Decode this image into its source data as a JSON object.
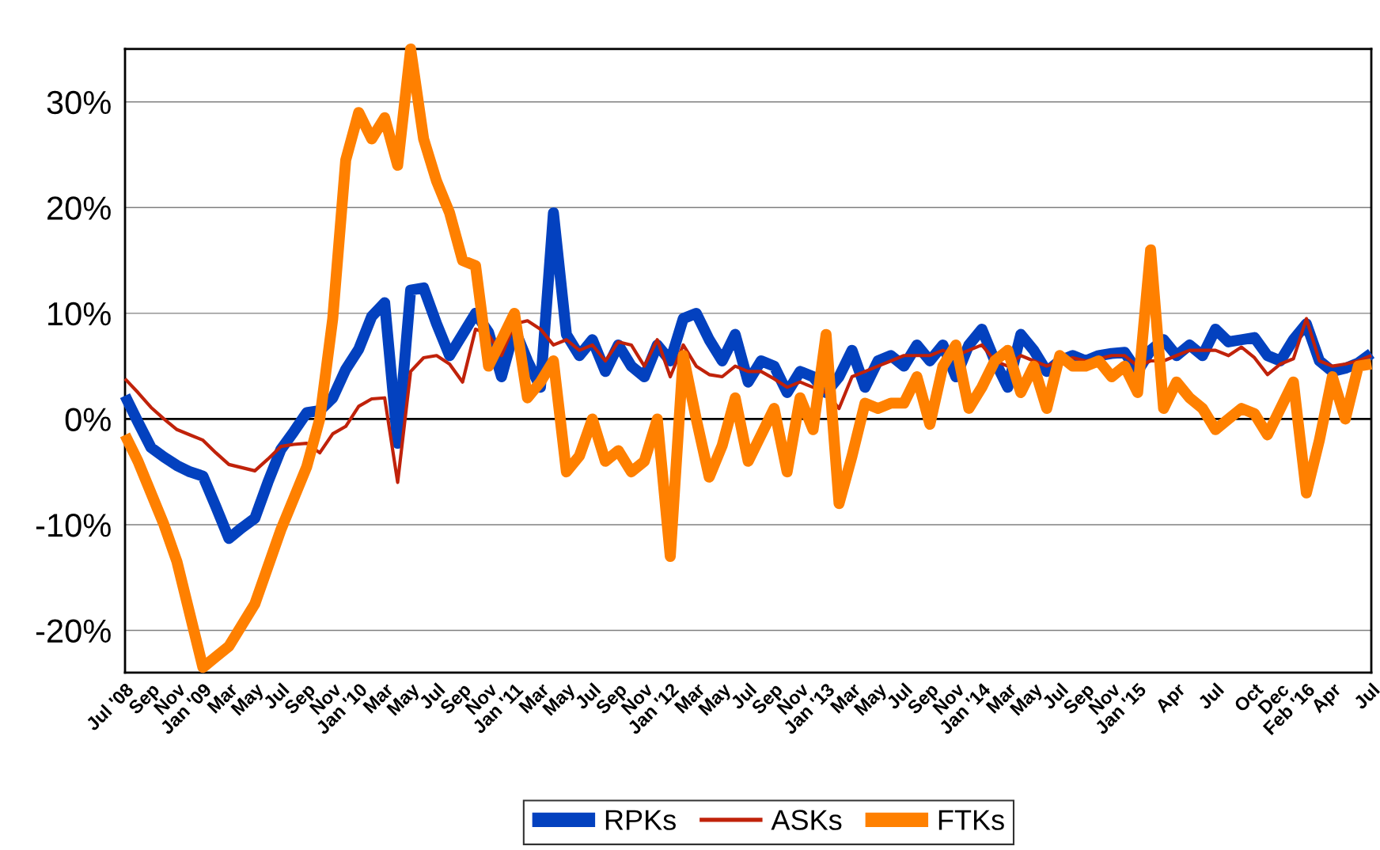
{
  "chart_data": {
    "type": "line",
    "categories": [
      "Jul '08",
      null,
      "Sep",
      null,
      "Nov",
      null,
      "Jan '09",
      null,
      "Mar",
      null,
      "May",
      null,
      "Jul",
      null,
      "Sep",
      null,
      "Nov",
      null,
      "Jan '10",
      null,
      "Mar",
      null,
      "May",
      null,
      "Jul",
      null,
      "Sep",
      null,
      "Nov",
      null,
      "Jan '11",
      null,
      "Mar",
      null,
      "May",
      null,
      "Jul",
      null,
      "Sep",
      null,
      "Nov",
      null,
      "Jan '12",
      null,
      "Mar",
      null,
      "May",
      null,
      "Jul",
      null,
      "Sep",
      null,
      "Nov",
      null,
      "Jan '13",
      null,
      "Mar",
      null,
      "May",
      null,
      "Jul",
      null,
      "Sep",
      null,
      "Nov",
      null,
      "Jan '14",
      null,
      "Mar",
      null,
      "May",
      null,
      "Jul",
      null,
      "Sep",
      null,
      "Nov",
      null,
      "Jan '15",
      null,
      null,
      "Apr",
      null,
      null,
      "Jul",
      null,
      null,
      "Oct",
      null,
      "Dec",
      null,
      "Feb '16",
      null,
      "Apr",
      null,
      null,
      "Jul"
    ],
    "series": [
      {
        "name": "RPKs",
        "color": "#0341bf",
        "values": [
          2.2,
          -0.3,
          -2.7,
          -3.6,
          -4.4,
          -5.0,
          -5.4,
          -8.3,
          -11.3,
          -10.3,
          -9.4,
          -6.0,
          -2.9,
          -1.2,
          0.6,
          0.8,
          2.0,
          4.7,
          6.6,
          9.7,
          11.0,
          -2.3,
          12.2,
          12.4,
          9.0,
          6.0,
          8.0,
          10.0,
          8.2,
          4.0,
          8.5,
          5.5,
          3.0,
          19.5,
          8.0,
          6.0,
          7.5,
          4.5,
          7.0,
          5.0,
          4.0,
          7.0,
          5.5,
          9.5,
          10.0,
          7.5,
          5.5,
          8.0,
          3.5,
          5.5,
          5.0,
          2.5,
          4.5,
          4.0,
          2.5,
          4.0,
          6.5,
          3.0,
          5.5,
          6.0,
          5.0,
          7.0,
          5.5,
          7.0,
          4.0,
          7.0,
          8.5,
          5.5,
          3.0,
          8.0,
          6.5,
          4.5,
          5.5,
          6.0,
          5.5,
          6.0,
          6.2,
          6.3,
          4.5,
          6.5,
          7.5,
          6.0,
          7.0,
          6.0,
          8.5,
          7.3,
          7.5,
          7.7,
          6.0,
          5.5,
          7.5,
          9.0,
          5.5,
          4.5,
          4.8,
          5.3,
          6.2
        ]
      },
      {
        "name": "ASKs",
        "color": "#c0220a",
        "values": [
          3.8,
          2.5,
          1.1,
          0.0,
          -1.0,
          -1.5,
          -2.0,
          -3.2,
          -4.3,
          -4.6,
          -4.9,
          -3.8,
          -2.6,
          -2.4,
          -2.3,
          -3.2,
          -1.4,
          -0.7,
          1.2,
          1.9,
          2.0,
          -6.0,
          4.5,
          5.8,
          6.0,
          5.2,
          3.5,
          8.5,
          8.0,
          6.0,
          9.0,
          9.3,
          8.5,
          7.0,
          7.5,
          6.5,
          7.0,
          5.5,
          7.3,
          7.0,
          5.0,
          7.5,
          4.0,
          7.0,
          5.0,
          4.2,
          4.0,
          5.0,
          4.5,
          4.5,
          3.8,
          3.0,
          3.5,
          3.0,
          2.5,
          1.0,
          4.0,
          4.5,
          5.0,
          5.5,
          6.0,
          6.0,
          6.0,
          6.5,
          6.0,
          6.5,
          7.0,
          5.5,
          5.0,
          6.0,
          5.5,
          5.0,
          5.5,
          5.8,
          5.5,
          5.7,
          6.0,
          6.0,
          5.0,
          5.5,
          5.5,
          6.0,
          6.5,
          6.5,
          6.5,
          6.0,
          6.8,
          5.8,
          4.2,
          5.2,
          5.7,
          9.5,
          5.5,
          5.0,
          5.2,
          5.5,
          6.0
        ]
      },
      {
        "name": "FTKs",
        "color": "#ff8000",
        "values": [
          -1.5,
          -4.0,
          -7.0,
          -10.0,
          -13.5,
          -18.5,
          -23.5,
          -22.5,
          -21.5,
          -19.5,
          -17.5,
          -14.0,
          -10.5,
          -7.5,
          -4.5,
          0.0,
          9.5,
          24.5,
          29.0,
          26.5,
          28.5,
          24.0,
          35.0,
          26.5,
          22.5,
          19.5,
          15.0,
          14.5,
          5.0,
          7.5,
          10.0,
          2.0,
          3.5,
          5.5,
          -5.0,
          -3.5,
          0.0,
          -4.0,
          -3.0,
          -5.0,
          -4.0,
          0.0,
          -13.0,
          6.0,
          0.0,
          -5.5,
          -2.5,
          2.0,
          -4.0,
          -1.5,
          1.0,
          -5.0,
          2.0,
          -1.0,
          8.0,
          -8.0,
          -3.5,
          1.5,
          1.0,
          1.5,
          1.5,
          4.0,
          -0.5,
          5.0,
          7.0,
          1.0,
          3.0,
          5.5,
          6.5,
          2.5,
          5.0,
          1.0,
          6.0,
          5.0,
          5.0,
          5.5,
          4.0,
          5.0,
          2.5,
          16.0,
          1.0,
          3.5,
          2.0,
          1.0,
          -1.0,
          0.0,
          1.0,
          0.5,
          -1.5,
          1.0,
          3.5,
          -7.0,
          -2.0,
          4.0,
          0.0,
          5.0,
          5.2
        ]
      }
    ],
    "ylim": [
      -24,
      35
    ],
    "yticks": [
      {
        "value": -20,
        "label": "-20%"
      },
      {
        "value": -10,
        "label": "-10%"
      },
      {
        "value": 0,
        "label": "0%"
      },
      {
        "value": 10,
        "label": "10%"
      },
      {
        "value": 20,
        "label": "20%"
      },
      {
        "value": 30,
        "label": "30%"
      }
    ],
    "grid": "y",
    "ref_lines": [
      {
        "axis": "y",
        "value": 0,
        "color": "#000000"
      }
    ],
    "legend": "bottom",
    "marker": "none",
    "line_style": "solid"
  }
}
